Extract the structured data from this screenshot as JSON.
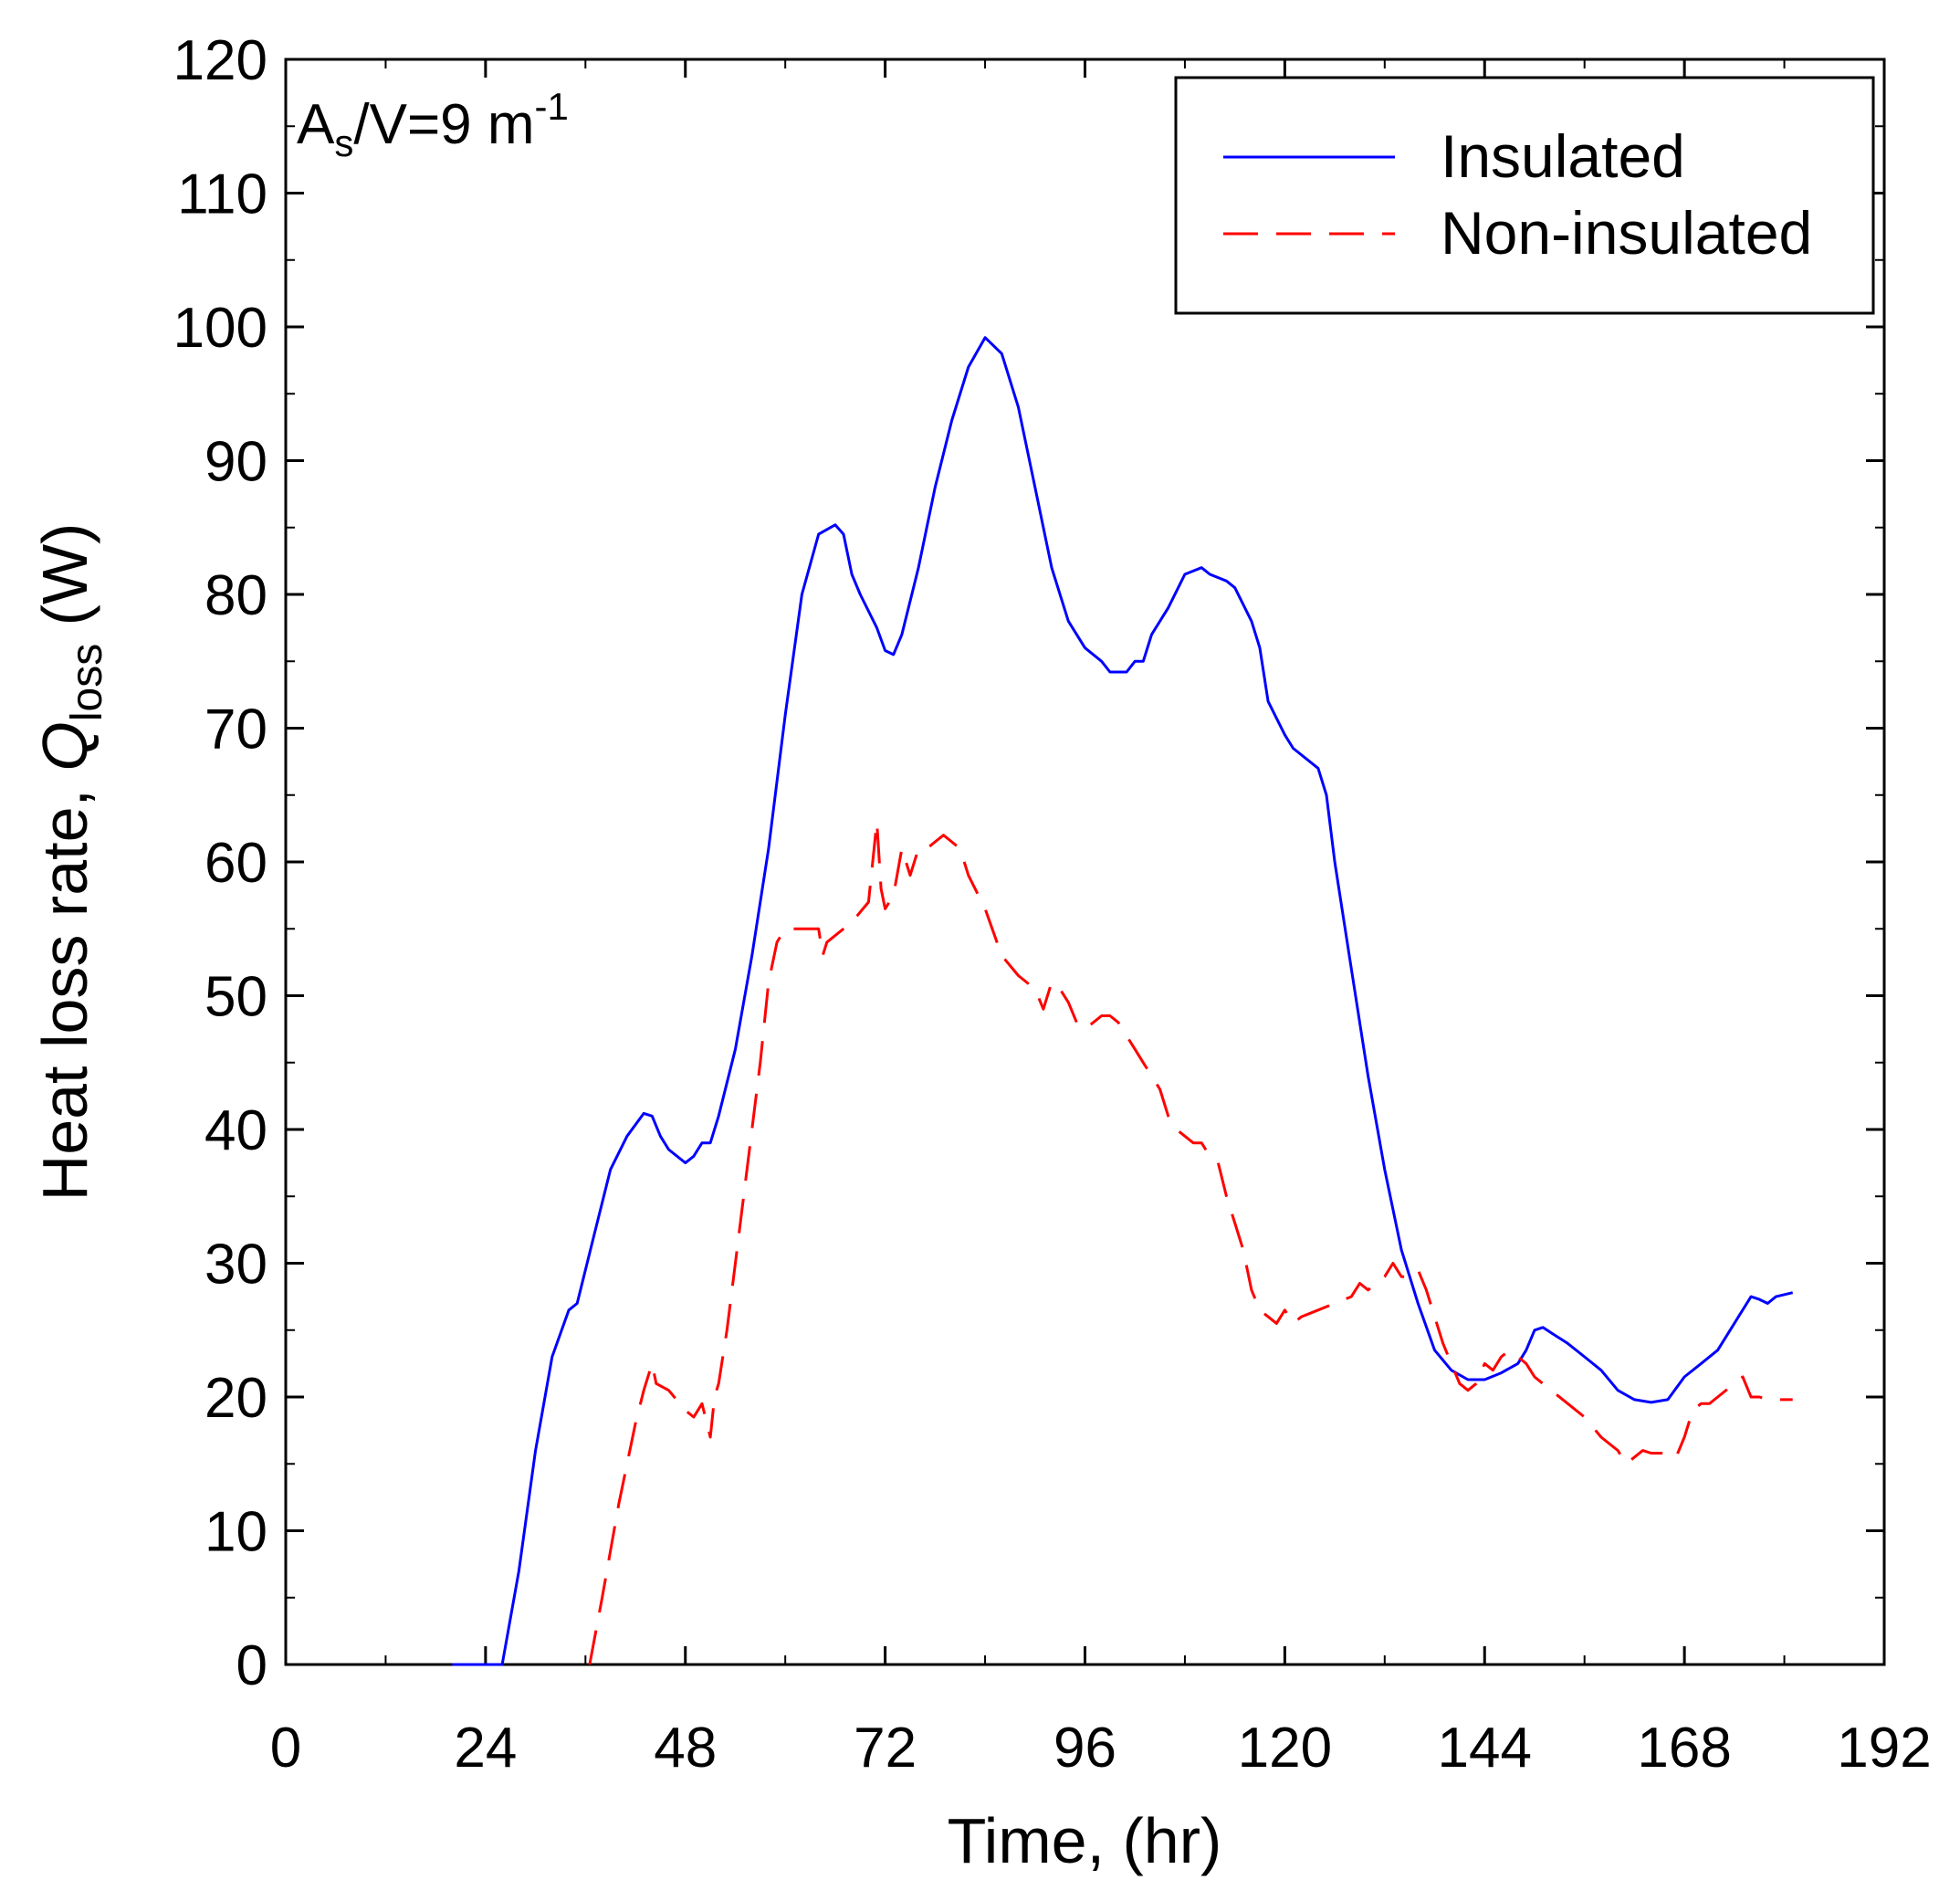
{
  "chart_data": {
    "type": "line",
    "title": "",
    "xlabel": "Time, (hr)",
    "ylabel": {
      "prefix": "Heat loss rate,  ",
      "symbol": "Q",
      "subscript": "loss",
      "suffix": " (W)"
    },
    "annotation": {
      "base": "A",
      "sub": "s",
      "rest": "/V=9 m",
      "sup": "-1"
    },
    "xlim": [
      0,
      192
    ],
    "ylim": [
      0,
      120
    ],
    "xticks": [
      0,
      24,
      48,
      72,
      96,
      120,
      144,
      168,
      192
    ],
    "yticks": [
      0,
      10,
      20,
      30,
      40,
      50,
      60,
      70,
      80,
      90,
      100,
      110,
      120
    ],
    "legend_position": "top-right",
    "series": [
      {
        "name": "Insulated",
        "color": "#0000ff",
        "style": "solid",
        "points": [
          [
            20,
            0
          ],
          [
            26,
            0
          ],
          [
            28,
            7
          ],
          [
            30,
            16
          ],
          [
            32,
            23
          ],
          [
            34,
            26.5
          ],
          [
            35,
            27
          ],
          [
            37,
            32
          ],
          [
            39,
            37
          ],
          [
            41,
            39.5
          ],
          [
            43,
            41.2
          ],
          [
            44,
            41
          ],
          [
            45,
            39.5
          ],
          [
            46,
            38.5
          ],
          [
            48,
            37.5
          ],
          [
            49,
            38
          ],
          [
            50,
            39
          ],
          [
            51,
            39
          ],
          [
            52,
            41
          ],
          [
            54,
            46
          ],
          [
            56,
            53
          ],
          [
            58,
            61
          ],
          [
            60,
            71
          ],
          [
            62,
            80
          ],
          [
            64,
            84.5
          ],
          [
            66,
            85.2
          ],
          [
            67,
            84.5
          ],
          [
            68,
            81.5
          ],
          [
            69,
            80
          ],
          [
            71,
            77.5
          ],
          [
            72,
            75.8
          ],
          [
            73,
            75.5
          ],
          [
            74,
            77
          ],
          [
            76,
            82
          ],
          [
            78,
            88
          ],
          [
            80,
            93
          ],
          [
            82,
            97
          ],
          [
            84,
            99.2
          ],
          [
            86,
            98
          ],
          [
            88,
            94
          ],
          [
            90,
            88
          ],
          [
            92,
            82
          ],
          [
            94,
            78
          ],
          [
            96,
            76
          ],
          [
            98,
            75
          ],
          [
            99,
            74.2
          ],
          [
            101,
            74.2
          ],
          [
            102,
            75
          ],
          [
            103,
            75
          ],
          [
            104,
            77
          ],
          [
            106,
            79
          ],
          [
            108,
            81.5
          ],
          [
            110,
            82
          ],
          [
            111,
            81.5
          ],
          [
            113,
            81
          ],
          [
            114,
            80.5
          ],
          [
            116,
            78
          ],
          [
            117,
            76
          ],
          [
            118,
            72
          ],
          [
            120,
            69.5
          ],
          [
            121,
            68.5
          ],
          [
            123,
            67.5
          ],
          [
            124,
            67
          ],
          [
            125,
            65
          ],
          [
            126,
            60
          ],
          [
            128,
            52
          ],
          [
            130,
            44
          ],
          [
            132,
            37
          ],
          [
            134,
            31
          ],
          [
            136,
            27
          ],
          [
            138,
            23.5
          ],
          [
            140,
            22
          ],
          [
            142,
            21.3
          ],
          [
            144,
            21.3
          ],
          [
            146,
            21.8
          ],
          [
            148,
            22.5
          ],
          [
            149,
            23.5
          ],
          [
            150,
            25
          ],
          [
            151,
            25.2
          ],
          [
            152,
            24.8
          ],
          [
            154,
            24
          ],
          [
            156,
            23
          ],
          [
            158,
            22
          ],
          [
            160,
            20.5
          ],
          [
            162,
            19.8
          ],
          [
            164,
            19.6
          ],
          [
            166,
            19.8
          ],
          [
            168,
            21.5
          ],
          [
            170,
            22.5
          ],
          [
            172,
            23.5
          ],
          [
            174,
            25.5
          ],
          [
            176,
            27.5
          ],
          [
            177,
            27.3
          ],
          [
            178,
            27
          ],
          [
            179,
            27.5
          ],
          [
            181,
            27.8
          ]
        ]
      },
      {
        "name": "Non-insulated",
        "color": "#ff0000",
        "style": "dashed",
        "points": [
          [
            36.5,
            0
          ],
          [
            38,
            5
          ],
          [
            40,
            12
          ],
          [
            42,
            18
          ],
          [
            43,
            20.5
          ],
          [
            44,
            22.5
          ],
          [
            44.5,
            21
          ],
          [
            46,
            20.5
          ],
          [
            48,
            19
          ],
          [
            49,
            18.5
          ],
          [
            50,
            19.5
          ],
          [
            51,
            17
          ],
          [
            51.5,
            20
          ],
          [
            52,
            21
          ],
          [
            53,
            25
          ],
          [
            54,
            30
          ],
          [
            56,
            40
          ],
          [
            57,
            45
          ],
          [
            58,
            51
          ],
          [
            59,
            54
          ],
          [
            60,
            55
          ],
          [
            62,
            55
          ],
          [
            63,
            55
          ],
          [
            64,
            55
          ],
          [
            64.5,
            53
          ],
          [
            65,
            54
          ],
          [
            66,
            54.5
          ],
          [
            68,
            55.5
          ],
          [
            70,
            57
          ],
          [
            71,
            63
          ],
          [
            71.5,
            58
          ],
          [
            72,
            56.5
          ],
          [
            73,
            57.5
          ],
          [
            74,
            61
          ],
          [
            75,
            59
          ],
          [
            76,
            61
          ],
          [
            77,
            61
          ],
          [
            78,
            61.5
          ],
          [
            79,
            62
          ],
          [
            80,
            61.5
          ],
          [
            81,
            61
          ],
          [
            82,
            59
          ],
          [
            84,
            56.5
          ],
          [
            86,
            53
          ],
          [
            88,
            51.5
          ],
          [
            90,
            50.5
          ],
          [
            91,
            49
          ],
          [
            92,
            51
          ],
          [
            93,
            50.5
          ],
          [
            94,
            49.5
          ],
          [
            95,
            48
          ],
          [
            96,
            47.5
          ],
          [
            97,
            48
          ],
          [
            98,
            48.5
          ],
          [
            99,
            48.5
          ],
          [
            100,
            48
          ],
          [
            101,
            47
          ],
          [
            102,
            46
          ],
          [
            103,
            45
          ],
          [
            104,
            44
          ],
          [
            105,
            43
          ],
          [
            106,
            41
          ],
          [
            107,
            40
          ],
          [
            108,
            39.5
          ],
          [
            109,
            39
          ],
          [
            110,
            39
          ],
          [
            111,
            38
          ],
          [
            112,
            37.5
          ],
          [
            113,
            35
          ],
          [
            114,
            33
          ],
          [
            115,
            31
          ],
          [
            116,
            28
          ],
          [
            117,
            26.5
          ],
          [
            118,
            26
          ],
          [
            119,
            25.5
          ],
          [
            120,
            26.5
          ],
          [
            121,
            25.5
          ],
          [
            122,
            26
          ],
          [
            124,
            26.5
          ],
          [
            126,
            27
          ],
          [
            128,
            27.5
          ],
          [
            129,
            28.5
          ],
          [
            130,
            28
          ],
          [
            131,
            28.5
          ],
          [
            132,
            29
          ],
          [
            133,
            30
          ],
          [
            134,
            29
          ],
          [
            135,
            29
          ],
          [
            136,
            29.5
          ],
          [
            137,
            28
          ],
          [
            138,
            26
          ],
          [
            139,
            24
          ],
          [
            140,
            22.5
          ],
          [
            141,
            21
          ],
          [
            142,
            20.5
          ],
          [
            143,
            21
          ],
          [
            144,
            22.5
          ],
          [
            145,
            22
          ],
          [
            146,
            23
          ],
          [
            147,
            23.5
          ],
          [
            148,
            23
          ],
          [
            149,
            22.5
          ],
          [
            150,
            21.5
          ],
          [
            152,
            20.5
          ],
          [
            154,
            19.5
          ],
          [
            156,
            18.5
          ],
          [
            158,
            17
          ],
          [
            160,
            16
          ],
          [
            161,
            15
          ],
          [
            162,
            15.5
          ],
          [
            163,
            16
          ],
          [
            164,
            15.8
          ],
          [
            166,
            15.8
          ],
          [
            167,
            15.5
          ],
          [
            168,
            17
          ],
          [
            169,
            19
          ],
          [
            170,
            19.5
          ],
          [
            171,
            19.5
          ],
          [
            172,
            20
          ],
          [
            173,
            20.5
          ],
          [
            174,
            21
          ],
          [
            175,
            21.5
          ],
          [
            176,
            20
          ],
          [
            177,
            20
          ],
          [
            178,
            19.8
          ],
          [
            179,
            19.8
          ],
          [
            181,
            19.8
          ]
        ]
      }
    ]
  }
}
